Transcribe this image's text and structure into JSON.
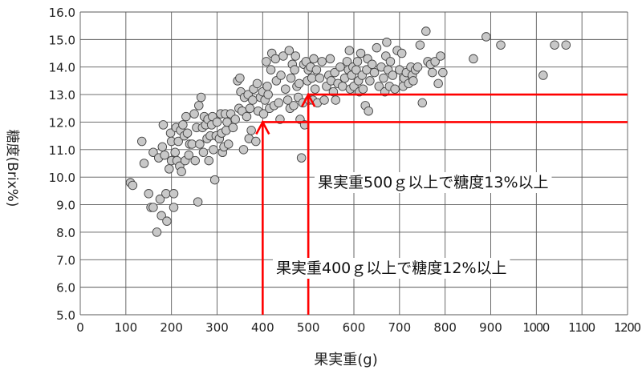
{
  "chart_data": {
    "type": "scatter",
    "xlabel": "果実重(g)",
    "ylabel": "糖度(Brix%)",
    "xlim": [
      0,
      1200
    ],
    "ylim": [
      5.0,
      16.0
    ],
    "x_ticks": [
      "0",
      "100",
      "200",
      "300",
      "400",
      "500",
      "600",
      "700",
      "800",
      "900",
      "1000",
      "1100",
      "1200"
    ],
    "y_ticks": [
      "5.0",
      "6.0",
      "7.0",
      "8.0",
      "9.0",
      "10.0",
      "11.0",
      "12.0",
      "13.0",
      "14.0",
      "15.0",
      "16.0"
    ],
    "grid": true,
    "annotations": [
      {
        "text": "果実重500ｇ以上で糖度13%以上",
        "x_from": 500,
        "y_level": 13.0
      },
      {
        "text": "果実重400ｇ以上で糖度12%以上",
        "x_from": 400,
        "y_level": 12.0
      }
    ],
    "points": [
      [
        110,
        9.8
      ],
      [
        115,
        9.7
      ],
      [
        135,
        11.3
      ],
      [
        140,
        10.5
      ],
      [
        150,
        9.4
      ],
      [
        155,
        8.9
      ],
      [
        160,
        8.9
      ],
      [
        160,
        10.9
      ],
      [
        168,
        8.0
      ],
      [
        172,
        10.7
      ],
      [
        175,
        9.2
      ],
      [
        178,
        8.6
      ],
      [
        180,
        11.1
      ],
      [
        182,
        11.9
      ],
      [
        185,
        10.8
      ],
      [
        188,
        9.4
      ],
      [
        190,
        8.4
      ],
      [
        195,
        10.3
      ],
      [
        198,
        11.6
      ],
      [
        200,
        10.6
      ],
      [
        200,
        11.3
      ],
      [
        205,
        9.4
      ],
      [
        205,
        8.9
      ],
      [
        208,
        10.9
      ],
      [
        210,
        11.8
      ],
      [
        212,
        10.6
      ],
      [
        215,
        11.3
      ],
      [
        218,
        10.4
      ],
      [
        220,
        11.7
      ],
      [
        222,
        10.2
      ],
      [
        225,
        11.9
      ],
      [
        228,
        11.5
      ],
      [
        230,
        10.6
      ],
      [
        232,
        12.2
      ],
      [
        235,
        11.6
      ],
      [
        238,
        10.8
      ],
      [
        240,
        11.2
      ],
      [
        245,
        11.2
      ],
      [
        250,
        12.3
      ],
      [
        252,
        10.6
      ],
      [
        255,
        11.8
      ],
      [
        258,
        9.1
      ],
      [
        260,
        12.6
      ],
      [
        262,
        11.2
      ],
      [
        265,
        12.9
      ],
      [
        268,
        11.8
      ],
      [
        270,
        10.9
      ],
      [
        272,
        12.2
      ],
      [
        275,
        11.9
      ],
      [
        278,
        11.4
      ],
      [
        280,
        12.1
      ],
      [
        282,
        10.6
      ],
      [
        285,
        11.5
      ],
      [
        288,
        11.9
      ],
      [
        290,
        12.2
      ],
      [
        292,
        11.0
      ],
      [
        295,
        9.9
      ],
      [
        298,
        11.5
      ],
      [
        300,
        12.0
      ],
      [
        305,
        11.4
      ],
      [
        308,
        12.3
      ],
      [
        310,
        11.6
      ],
      [
        312,
        10.9
      ],
      [
        315,
        11.1
      ],
      [
        318,
        12.3
      ],
      [
        320,
        11.7
      ],
      [
        322,
        12.0
      ],
      [
        325,
        11.2
      ],
      [
        330,
        12.3
      ],
      [
        335,
        11.8
      ],
      [
        340,
        12.1
      ],
      [
        345,
        13.5
      ],
      [
        348,
        12.5
      ],
      [
        350,
        13.6
      ],
      [
        352,
        13.1
      ],
      [
        355,
        12.4
      ],
      [
        358,
        11.0
      ],
      [
        360,
        12.9
      ],
      [
        365,
        12.2
      ],
      [
        368,
        13.0
      ],
      [
        370,
        11.4
      ],
      [
        372,
        12.5
      ],
      [
        375,
        11.7
      ],
      [
        378,
        12.8
      ],
      [
        380,
        13.2
      ],
      [
        385,
        11.3
      ],
      [
        388,
        13.4
      ],
      [
        390,
        12.4
      ],
      [
        395,
        12.9
      ],
      [
        400,
        13.1
      ],
      [
        402,
        12.3
      ],
      [
        405,
        12.8
      ],
      [
        408,
        14.2
      ],
      [
        410,
        13.3
      ],
      [
        412,
        13.0
      ],
      [
        415,
        12.5
      ],
      [
        418,
        13.9
      ],
      [
        420,
        14.5
      ],
      [
        425,
        12.6
      ],
      [
        428,
        14.3
      ],
      [
        430,
        13.5
      ],
      [
        435,
        12.7
      ],
      [
        438,
        12.1
      ],
      [
        440,
        13.7
      ],
      [
        445,
        14.4
      ],
      [
        450,
        13.2
      ],
      [
        455,
        12.8
      ],
      [
        458,
        14.6
      ],
      [
        460,
        12.5
      ],
      [
        462,
        13.6
      ],
      [
        465,
        14.1
      ],
      [
        468,
        12.6
      ],
      [
        470,
        13.9
      ],
      [
        472,
        14.4
      ],
      [
        475,
        13.3
      ],
      [
        478,
        12.9
      ],
      [
        480,
        13.4
      ],
      [
        482,
        12.1
      ],
      [
        485,
        10.7
      ],
      [
        488,
        12.7
      ],
      [
        490,
        14.1
      ],
      [
        492,
        11.9
      ],
      [
        495,
        14.2
      ],
      [
        498,
        13.5
      ],
      [
        500,
        13.9
      ],
      [
        502,
        12.8
      ],
      [
        505,
        14.0
      ],
      [
        508,
        13.6
      ],
      [
        510,
        12.8
      ],
      [
        512,
        14.3
      ],
      [
        515,
        13.2
      ],
      [
        518,
        13.9
      ],
      [
        520,
        12.7
      ],
      [
        525,
        13.6
      ],
      [
        530,
        14.2
      ],
      [
        535,
        12.8
      ],
      [
        540,
        13.3
      ],
      [
        545,
        13.7
      ],
      [
        548,
        14.3
      ],
      [
        550,
        13.5
      ],
      [
        555,
        13.1
      ],
      [
        558,
        13.8
      ],
      [
        560,
        12.8
      ],
      [
        565,
        13.4
      ],
      [
        570,
        14.0
      ],
      [
        575,
        13.3
      ],
      [
        580,
        13.6
      ],
      [
        585,
        14.2
      ],
      [
        588,
        13.9
      ],
      [
        590,
        14.6
      ],
      [
        592,
        13.2
      ],
      [
        595,
        13.7
      ],
      [
        598,
        14.0
      ],
      [
        600,
        13.3
      ],
      [
        605,
        13.9
      ],
      [
        608,
        14.2
      ],
      [
        610,
        13.5
      ],
      [
        612,
        13.1
      ],
      [
        615,
        14.5
      ],
      [
        618,
        13.7
      ],
      [
        620,
        13.2
      ],
      [
        625,
        12.6
      ],
      [
        628,
        13.9
      ],
      [
        630,
        14.3
      ],
      [
        632,
        12.4
      ],
      [
        635,
        13.5
      ],
      [
        640,
        14.1
      ],
      [
        645,
        13.8
      ],
      [
        650,
        14.7
      ],
      [
        655,
        13.3
      ],
      [
        660,
        14.0
      ],
      [
        665,
        13.6
      ],
      [
        668,
        13.1
      ],
      [
        670,
        14.4
      ],
      [
        672,
        14.9
      ],
      [
        675,
        13.9
      ],
      [
        678,
        13.3
      ],
      [
        680,
        14.2
      ],
      [
        685,
        13.7
      ],
      [
        690,
        13.2
      ],
      [
        695,
        14.6
      ],
      [
        700,
        13.9
      ],
      [
        705,
        14.5
      ],
      [
        708,
        13.3
      ],
      [
        710,
        13.6
      ],
      [
        715,
        13.8
      ],
      [
        720,
        13.4
      ],
      [
        725,
        14.0
      ],
      [
        728,
        13.7
      ],
      [
        730,
        13.5
      ],
      [
        735,
        13.9
      ],
      [
        740,
        14.0
      ],
      [
        745,
        14.8
      ],
      [
        750,
        12.7
      ],
      [
        758,
        15.3
      ],
      [
        762,
        14.2
      ],
      [
        768,
        14.1
      ],
      [
        772,
        13.8
      ],
      [
        778,
        14.2
      ],
      [
        785,
        13.4
      ],
      [
        790,
        14.4
      ],
      [
        795,
        13.8
      ],
      [
        862,
        14.3
      ],
      [
        890,
        15.1
      ],
      [
        922,
        14.8
      ],
      [
        1015,
        13.7
      ],
      [
        1040,
        14.8
      ],
      [
        1065,
        14.8
      ]
    ]
  }
}
